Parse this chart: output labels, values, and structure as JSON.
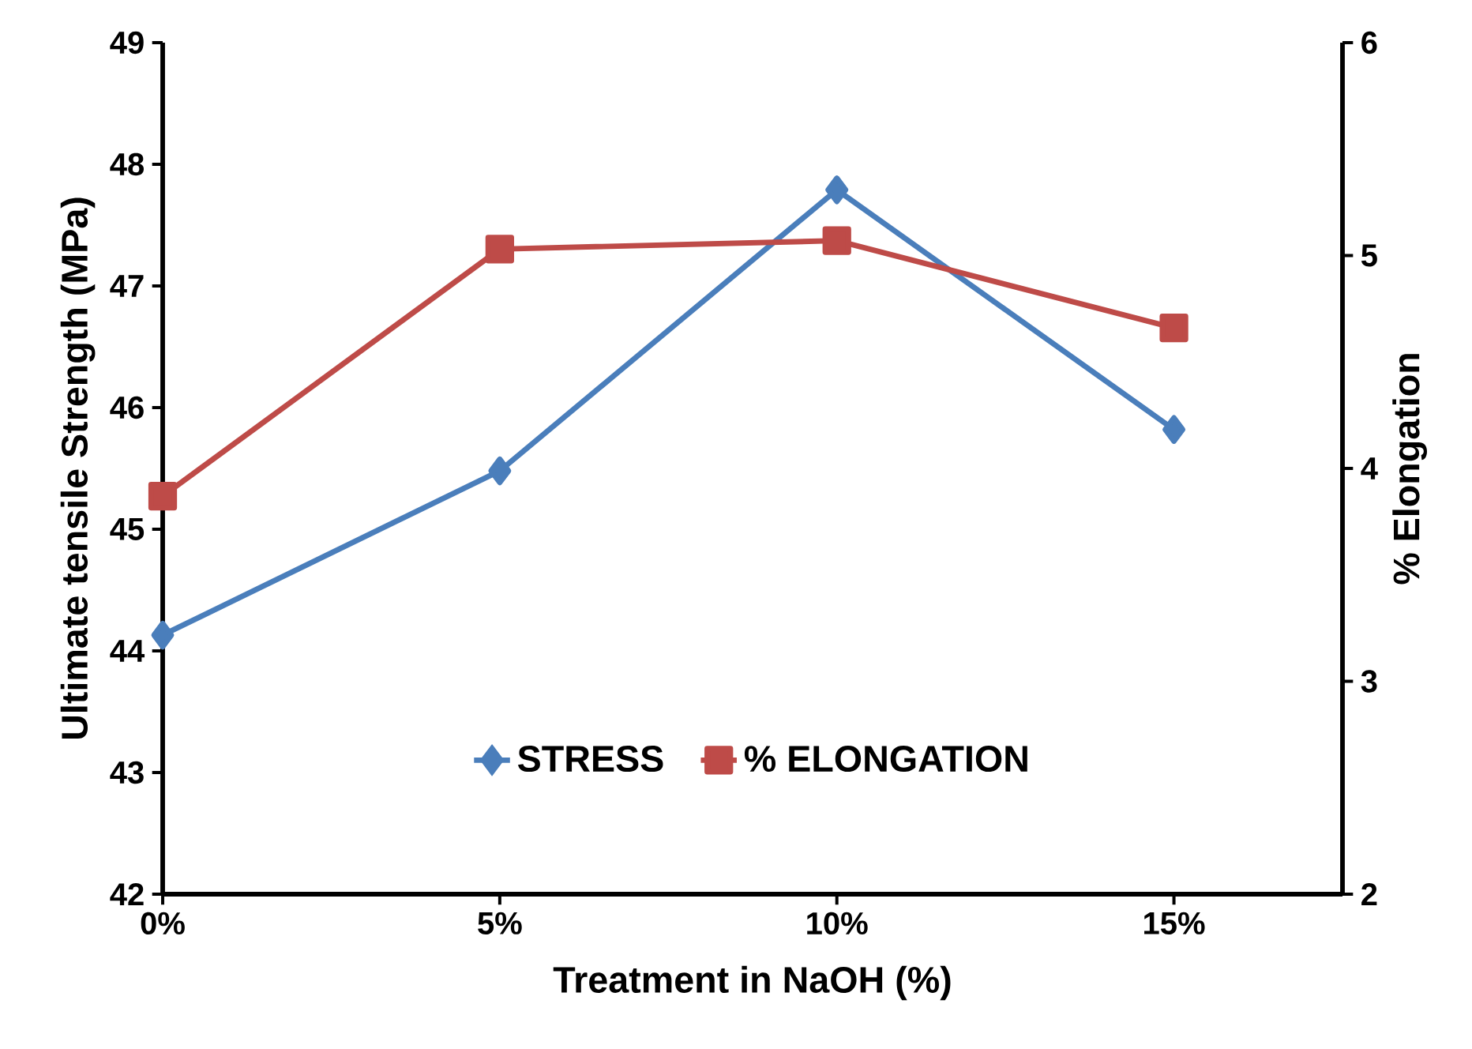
{
  "chart_data": {
    "type": "line",
    "xlabel": "Treatment in NaOH (%)",
    "ylabel": "Ultimate tensile Strength (MPa)",
    "y2label": "% Elongation",
    "x": [
      0,
      5,
      10,
      15
    ],
    "xlim": [
      0,
      17.5
    ],
    "xticks": [
      {
        "value": 0,
        "label": "0%"
      },
      {
        "value": 5,
        "label": "5%"
      },
      {
        "value": 10,
        "label": "10%"
      },
      {
        "value": 15,
        "label": "15%"
      }
    ],
    "ylim": [
      42,
      49
    ],
    "yticks": [
      42,
      43,
      44,
      45,
      46,
      47,
      48,
      49
    ],
    "y2lim": [
      2,
      6
    ],
    "y2ticks": [
      2,
      3,
      4,
      5,
      6
    ],
    "series": [
      {
        "name": "STRESS",
        "color": "#4a7ebb",
        "marker": "diamond",
        "values": [
          44.13,
          45.48,
          47.79,
          45.82
        ]
      },
      {
        "name": "% ELONGATION",
        "color": "#be4b48",
        "marker": "square",
        "axis": "y2",
        "values": [
          3.87,
          5.03,
          5.07,
          4.66
        ]
      }
    ],
    "grid": false,
    "legend": "bottom",
    "line_style": "solid"
  }
}
